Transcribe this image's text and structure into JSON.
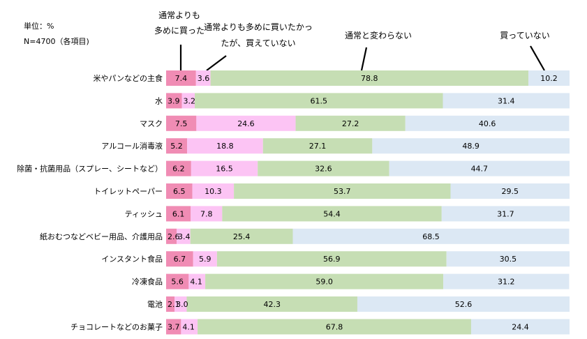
{
  "meta": {
    "unit_label": "単位：%",
    "n_label": "N=4700（各項目)"
  },
  "legend_callouts": [
    {
      "series_index": 0,
      "lines": [
        "通常よりも",
        "多めに買った"
      ]
    },
    {
      "series_index": 1,
      "lines": [
        "通常よりも多めに買いたかっ",
        "たが、買えていない"
      ]
    },
    {
      "series_index": 2,
      "lines": [
        "通常と変わらない"
      ]
    },
    {
      "series_index": 3,
      "lines": [
        "買っていない"
      ]
    }
  ],
  "chart_data": {
    "type": "bar",
    "orientation": "horizontal",
    "stacked": true,
    "percent_stacked": true,
    "xlim": [
      0,
      100
    ],
    "grid": false,
    "categories": [
      "米やパンなどの主食",
      "水",
      "マスク",
      "アルコール消毒液",
      "除菌・抗菌用品（スプレー、シートなど）",
      "トイレットペーパー",
      "ティッシュ",
      "紙おむつなどベビー用品、介護用品",
      "インスタント食品",
      "冷凍食品",
      "電池",
      "チョコレートなどのお菓子"
    ],
    "series": [
      {
        "name": "通常よりも多めに買った",
        "color": "#f08cb4",
        "values": [
          7.4,
          3.9,
          7.5,
          5.2,
          6.2,
          6.5,
          6.1,
          2.6,
          6.7,
          5.6,
          2.1,
          3.7
        ],
        "labels": [
          "7.4",
          "3.9",
          "7.5",
          "5.2",
          "6.2",
          "6.5",
          "6.1",
          "2.6",
          "6.7",
          "5.6",
          "2.1",
          "3.7"
        ]
      },
      {
        "name": "通常よりも多めに買いたかったが、買えていない",
        "color": "#fcc4f4",
        "values": [
          3.6,
          3.2,
          24.6,
          18.8,
          16.5,
          10.3,
          7.8,
          3.4,
          5.9,
          4.1,
          3.0,
          4.1
        ],
        "labels": [
          "3.6",
          "3.2",
          "24.6",
          "18.8",
          "16.5",
          "10.3",
          "7.8",
          "3.4",
          "5.9",
          "4.1",
          "3.0",
          "4.1"
        ]
      },
      {
        "name": "通常と変わらない",
        "color": "#c6deb4",
        "values": [
          78.8,
          61.5,
          27.2,
          27.1,
          32.6,
          53.7,
          54.4,
          25.4,
          56.9,
          59.0,
          42.3,
          67.8
        ],
        "labels": [
          "78.8",
          "61.5",
          "27.2",
          "27.1",
          "32.6",
          "53.7",
          "54.4",
          "25.4",
          "56.9",
          "59.0",
          "42.3",
          "67.8"
        ]
      },
      {
        "name": "買っていない",
        "color": "#dce8f4",
        "values": [
          10.2,
          31.4,
          40.6,
          48.9,
          44.7,
          29.5,
          31.7,
          68.5,
          30.5,
          31.2,
          52.6,
          24.4
        ],
        "labels": [
          "10.2",
          "31.4",
          "40.6",
          "48.9",
          "44.7",
          "29.5",
          "31.7",
          "68.5",
          "30.5",
          "31.2",
          "52.6",
          "24.4"
        ]
      }
    ]
  }
}
